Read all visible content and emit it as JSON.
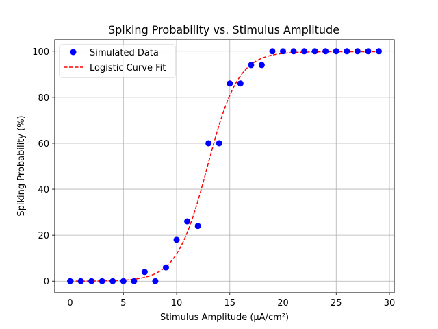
{
  "chart_data": {
    "type": "scatter",
    "title": "Spiking Probability vs. Stimulus Amplitude",
    "xlabel": "Stimulus Amplitude (µA/cm²)",
    "ylabel": "Spiking Probability (%)",
    "xlim": [
      -1.45,
      30.45
    ],
    "ylim": [
      -5,
      105
    ],
    "xticks": [
      0,
      5,
      10,
      15,
      20,
      25,
      30
    ],
    "yticks": [
      0,
      20,
      40,
      60,
      80,
      100
    ],
    "grid": true,
    "legend_position": "upper-left",
    "series": [
      {
        "name": "Simulated Data",
        "kind": "scatter",
        "color": "#0000ff",
        "x": [
          0,
          1,
          2,
          3,
          4,
          5,
          6,
          7,
          8,
          9,
          10,
          11,
          12,
          13,
          14,
          15,
          16,
          17,
          18,
          19,
          20,
          21,
          22,
          23,
          24,
          25,
          26,
          27,
          28,
          29
        ],
        "y": [
          0,
          0,
          0,
          0,
          0,
          0,
          0,
          4,
          0,
          6,
          18,
          26,
          24,
          60,
          60,
          86,
          86,
          94,
          94,
          100,
          100,
          100,
          100,
          100,
          100,
          100,
          100,
          100,
          100,
          100
        ]
      },
      {
        "name": "Logistic Curve Fit",
        "kind": "line",
        "style": "dashed",
        "color": "#ff0000",
        "logistic": {
          "L": 99.8,
          "k": 0.69,
          "x0": 12.9
        }
      }
    ]
  }
}
